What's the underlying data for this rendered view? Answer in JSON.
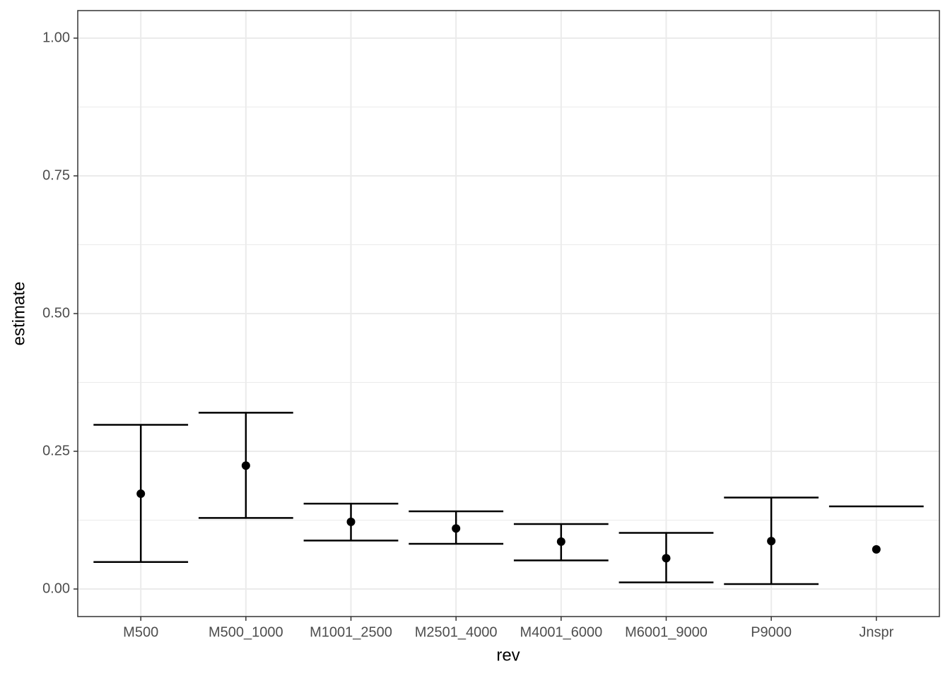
{
  "chart_data": {
    "type": "errorbar",
    "x_label": "rev",
    "y_label": "estimate",
    "categories": [
      "M500",
      "M500_1000",
      "M1001_2500",
      "M2501_4000",
      "M4001_6000",
      "M6001_9000",
      "P9000",
      "Jnspr"
    ],
    "values": [
      0.173,
      0.224,
      0.122,
      0.11,
      0.086,
      0.056,
      0.087,
      0.072
    ],
    "lower": [
      0.049,
      0.129,
      0.088,
      0.082,
      0.052,
      0.012,
      0.009,
      null
    ],
    "upper": [
      0.298,
      0.32,
      0.155,
      0.141,
      0.118,
      0.102,
      0.166,
      0.15
    ],
    "color": "#000000",
    "ylim": [
      -0.05,
      1.05
    ],
    "yticks": [
      {
        "value": 0,
        "label": "0.00"
      },
      {
        "value": 0.25,
        "label": "0.25"
      },
      {
        "value": 0.5,
        "label": "0.50"
      },
      {
        "value": 0.75,
        "label": "0.75"
      },
      {
        "value": 1,
        "label": "1.00"
      }
    ],
    "grid": true
  }
}
